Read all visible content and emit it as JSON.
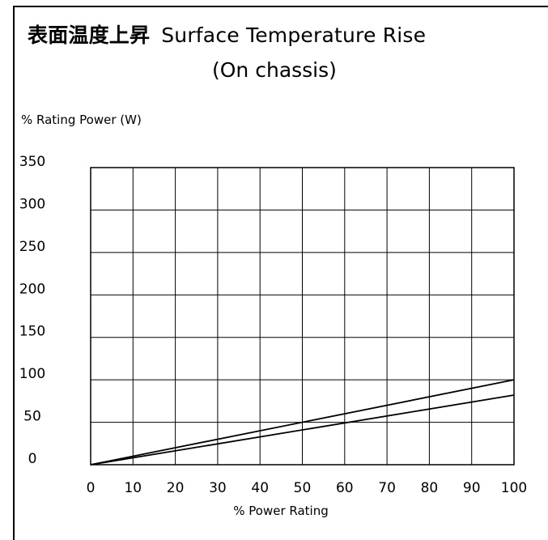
{
  "title": {
    "jp": "表面温度上昇",
    "en": "Surface Temperature Rise",
    "sub": "(On chassis)"
  },
  "chart_data": {
    "type": "line",
    "ylabel": "% Rating Power (W)",
    "xlabel": "% Power Rating",
    "xlim": [
      0,
      100
    ],
    "ylim": [
      0,
      350
    ],
    "x_ticks": [
      0,
      10,
      20,
      30,
      40,
      50,
      60,
      70,
      80,
      90,
      100
    ],
    "y_ticks": [
      0,
      50,
      100,
      150,
      200,
      250,
      300,
      350
    ],
    "grid": true,
    "legend": "none",
    "series": [
      {
        "x": [
          0,
          100
        ],
        "values": [
          0,
          100
        ]
      },
      {
        "x": [
          0,
          100
        ],
        "values": [
          0,
          82
        ]
      }
    ],
    "colors": {
      "line": "#000000",
      "grid": "#000000",
      "background": "#ffffff"
    }
  }
}
